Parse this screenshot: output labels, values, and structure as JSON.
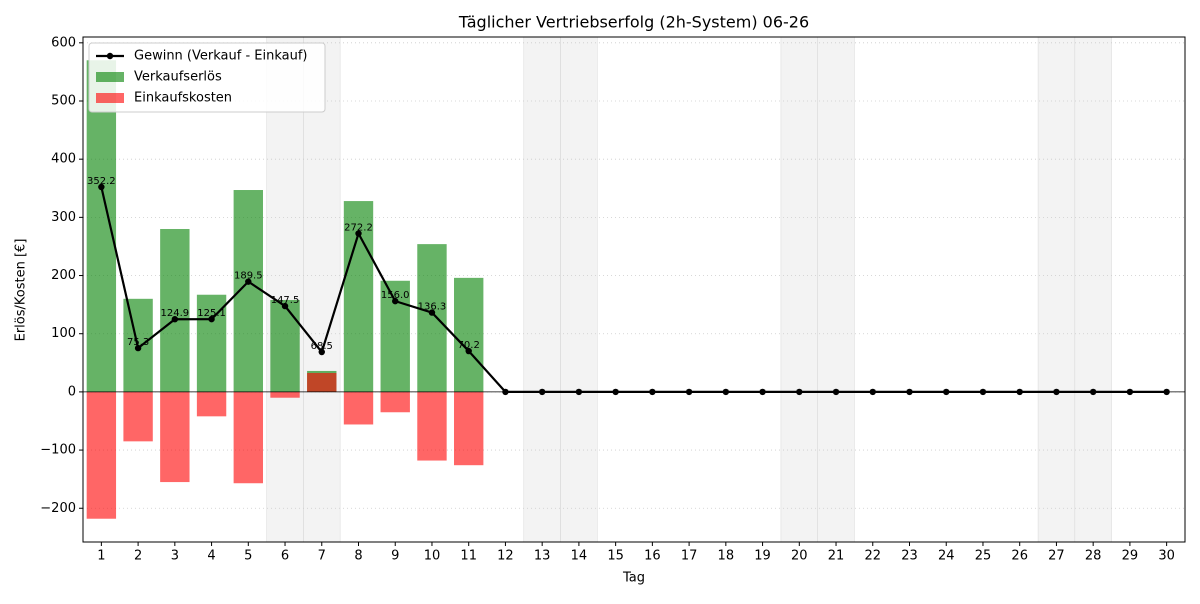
{
  "chart_data": {
    "type": "bar",
    "title": "Täglicher Vertriebserfolg (2h-System) 06-26",
    "x_label": "Tag",
    "y_label": "Erlös/Kosten [€]",
    "x": [
      1,
      2,
      3,
      4,
      5,
      6,
      7,
      8,
      9,
      10,
      11,
      12,
      13,
      14,
      15,
      16,
      17,
      18,
      19,
      20,
      21,
      22,
      23,
      24,
      25,
      26,
      27,
      28,
      29,
      30
    ],
    "xlim": [
      0.5,
      30.5
    ],
    "xticks": [
      1,
      2,
      3,
      4,
      5,
      6,
      7,
      8,
      9,
      10,
      11,
      12,
      13,
      14,
      15,
      16,
      17,
      18,
      19,
      20,
      21,
      22,
      23,
      24,
      25,
      26,
      27,
      28,
      29,
      30
    ],
    "ylim": [
      -258,
      610
    ],
    "yticks": [
      -200,
      -100,
      0,
      100,
      200,
      300,
      400,
      500,
      600
    ],
    "grid": true,
    "legend": "upper left",
    "weekend_days": [
      6,
      7,
      13,
      14,
      20,
      21,
      27,
      28
    ],
    "series": [
      {
        "name": "Gewinn (Verkauf - Einkauf)",
        "type": "line",
        "color": "black",
        "values": [
          352.2,
          75.3,
          124.9,
          125.1,
          189.5,
          147.5,
          68.5,
          272.2,
          156.0,
          136.3,
          70.2,
          0,
          0,
          0,
          0,
          0,
          0,
          0,
          0,
          0,
          0,
          0,
          0,
          0,
          0,
          0,
          0,
          0,
          0,
          0
        ],
        "value_labels": [
          "352.2",
          "75.3",
          "124.9",
          "125.1",
          "189.5",
          "147.5",
          "68.5",
          "272.2",
          "156.0",
          "136.3",
          "70.2",
          null,
          null,
          null,
          null,
          null,
          null,
          null,
          null,
          null,
          null,
          null,
          null,
          null,
          null,
          null,
          null,
          null,
          null,
          null
        ]
      },
      {
        "name": "Verkaufserlös",
        "type": "bar",
        "color": "green",
        "values": [
          570,
          160,
          280,
          167,
          347,
          158,
          36,
          328,
          191,
          254,
          196,
          0,
          0,
          0,
          0,
          0,
          0,
          0,
          0,
          0,
          0,
          0,
          0,
          0,
          0,
          0,
          0,
          0,
          0,
          0
        ]
      },
      {
        "name": "Einkaufskosten",
        "type": "bar",
        "color": "red",
        "values": [
          -218,
          -85,
          -155,
          -42,
          -157,
          -10,
          32.5,
          -56,
          -35,
          -118,
          -126,
          0,
          0,
          0,
          0,
          0,
          0,
          0,
          0,
          0,
          0,
          0,
          0,
          0,
          0,
          0,
          0,
          0,
          0,
          0
        ]
      }
    ]
  }
}
